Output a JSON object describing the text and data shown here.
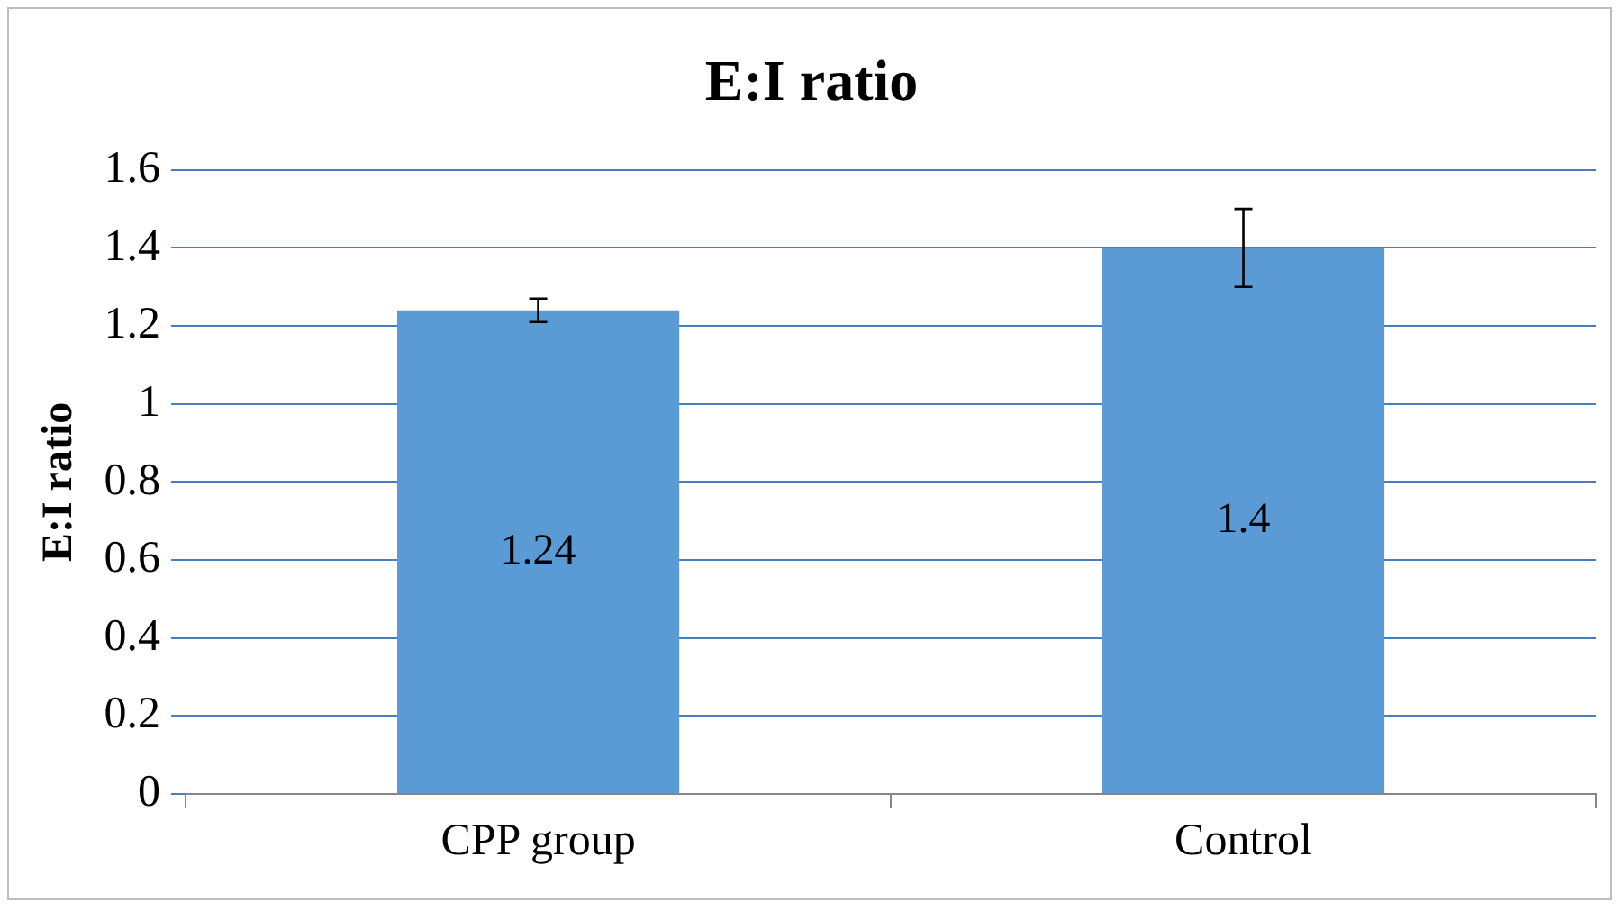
{
  "chart_data": {
    "type": "bar",
    "title": "E:I ratio",
    "ylabel": "E:I ratio",
    "categories": [
      "CPP group",
      "Control"
    ],
    "values": [
      1.24,
      1.4
    ],
    "errors": [
      0.03,
      0.1
    ],
    "color": "#5b9bd5",
    "ylim": [
      0,
      1.6
    ],
    "yticks": [
      0,
      0.2,
      0.4,
      0.6,
      0.8,
      1,
      1.2,
      1.4,
      1.6
    ],
    "grid": "y",
    "data_labels": true,
    "legend": false
  }
}
